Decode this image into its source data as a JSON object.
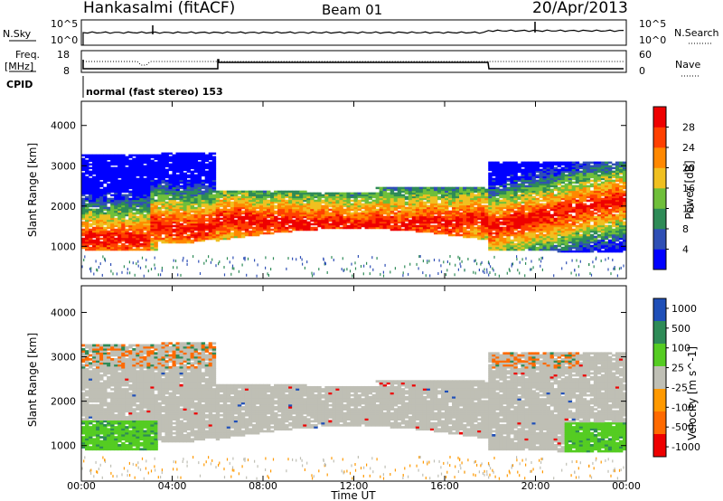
{
  "header": {
    "station": "Hankasalmi (fitACF)",
    "beam": "Beam 01",
    "date": "20/Apr/2013"
  },
  "noise_panel": {
    "left_label": "N.Sky",
    "right_label": "N.Search",
    "left_ticks": [
      "10^5",
      "10^0"
    ],
    "right_ticks": [
      "10^5",
      "10^0"
    ]
  },
  "freq_panel": {
    "left_label_1": "Freq.",
    "left_label_2": "[MHz]",
    "right_label": "Nave",
    "left_ticks": [
      "18",
      "8"
    ],
    "right_ticks": [
      "60",
      "0"
    ]
  },
  "cpid_panel": {
    "label": "CPID",
    "text": "normal (fast stereo) 153"
  },
  "colors": {
    "power": [
      "#0000ff",
      "#2f4fb5",
      "#2e8b57",
      "#6fbf3a",
      "#f0c020",
      "#ff8800",
      "#ff4000",
      "#ee0000"
    ],
    "velocity": [
      "#1f4fb8",
      "#2e8b57",
      "#55cc22",
      "#bfbfb5",
      "#ff9900",
      "#ff6a00",
      "#ee0000"
    ]
  },
  "chart_data": [
    {
      "type": "heatmap",
      "title": "",
      "ylabel": "Slant Range [km]",
      "xlabel": "",
      "ylim": [
        200,
        4600
      ],
      "yticks": [
        "1000",
        "2000",
        "3000",
        "4000"
      ],
      "colorbar": {
        "label": "Power [dB]",
        "ticks": [
          "4",
          "8",
          "12",
          "16",
          "20",
          "24",
          "28"
        ]
      }
    },
    {
      "type": "heatmap",
      "title": "",
      "ylabel": "Slant Range [km]",
      "xlabel": "Time UT",
      "ylim": [
        200,
        4600
      ],
      "yticks": [
        "1000",
        "2000",
        "3000",
        "4000"
      ],
      "xticks": [
        "00:00",
        "04:00",
        "08:00",
        "12:00",
        "16:00",
        "20:00",
        "00:00"
      ],
      "colorbar": {
        "label": "Velocity [m s^-1]",
        "ticks": [
          "1000",
          "500",
          "100",
          "25",
          "-25",
          "-100",
          "-500",
          "-1000"
        ]
      }
    }
  ]
}
